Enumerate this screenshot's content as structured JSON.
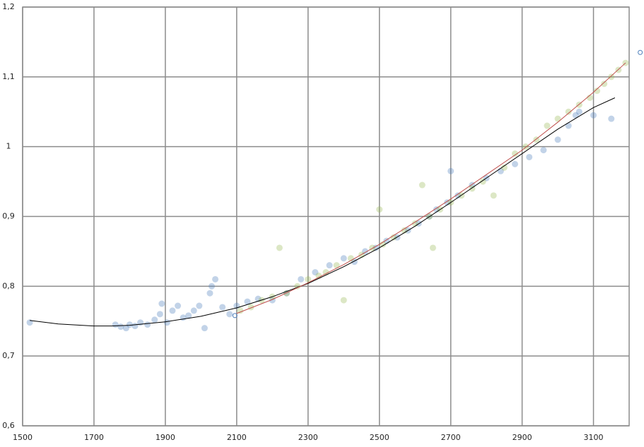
{
  "chart_data": {
    "type": "scatter",
    "xlim": [
      1500,
      3200
    ],
    "ylim": [
      0.6,
      1.2
    ],
    "xticks": [
      1500,
      1700,
      1900,
      2100,
      2300,
      2500,
      2700,
      2900,
      3100
    ],
    "yticks": [
      {
        "value": 0.6,
        "label": "0,6"
      },
      {
        "value": 0.7,
        "label": "0,7"
      },
      {
        "value": 0.8,
        "label": "0,8"
      },
      {
        "value": 0.9,
        "label": "0,9"
      },
      1,
      {
        "value": 1.1,
        "label": "1,1"
      },
      {
        "value": 1.2,
        "label": "1,2"
      }
    ],
    "grid": true,
    "series": [
      {
        "color": "#4f81bd",
        "x": [
          1520,
          1760,
          1775,
          1790,
          1800,
          1815,
          1830,
          1850,
          1870,
          1885,
          1890,
          1905,
          1920,
          1935,
          1950,
          1965,
          1980,
          1995,
          2010,
          2025,
          2030,
          2040,
          2060,
          2080,
          2100,
          2130,
          2160,
          2200,
          2240,
          2280,
          2320,
          2360,
          2400,
          2430,
          2460,
          2490,
          2520,
          2550,
          2580,
          2610,
          2640,
          2660,
          2690,
          2700,
          2720,
          2760,
          2800,
          2840,
          2880,
          2920,
          2960,
          3000,
          3030,
          3050,
          3060,
          3100,
          3150
        ],
        "values": [
          0.748,
          0.745,
          0.742,
          0.74,
          0.745,
          0.743,
          0.748,
          0.745,
          0.752,
          0.76,
          0.775,
          0.748,
          0.765,
          0.772,
          0.755,
          0.758,
          0.765,
          0.772,
          0.74,
          0.79,
          0.8,
          0.81,
          0.77,
          0.76,
          0.772,
          0.778,
          0.782,
          0.78,
          0.79,
          0.81,
          0.82,
          0.83,
          0.84,
          0.835,
          0.85,
          0.855,
          0.865,
          0.87,
          0.88,
          0.89,
          0.9,
          0.91,
          0.92,
          0.965,
          0.93,
          0.945,
          0.955,
          0.965,
          0.975,
          0.985,
          0.995,
          1.01,
          1.03,
          1.045,
          1.05,
          1.045,
          1.04
        ]
      },
      {
        "color": "#9bbb59",
        "x": [
          2110,
          2140,
          2170,
          2200,
          2220,
          2240,
          2270,
          2300,
          2330,
          2350,
          2380,
          2400,
          2420,
          2450,
          2480,
          2500,
          2510,
          2540,
          2570,
          2600,
          2620,
          2640,
          2650,
          2670,
          2700,
          2730,
          2760,
          2790,
          2820,
          2850,
          2880,
          2910,
          2940,
          2970,
          3000,
          3030,
          3060,
          3090,
          3110,
          3130,
          3150,
          3170,
          3190
        ],
        "values": [
          0.765,
          0.77,
          0.78,
          0.785,
          0.855,
          0.79,
          0.8,
          0.81,
          0.815,
          0.82,
          0.83,
          0.78,
          0.84,
          0.845,
          0.855,
          0.91,
          0.86,
          0.87,
          0.88,
          0.89,
          0.945,
          0.9,
          0.855,
          0.91,
          0.92,
          0.93,
          0.94,
          0.95,
          0.93,
          0.97,
          0.99,
          1.0,
          1.01,
          1.03,
          1.04,
          1.05,
          1.06,
          1.07,
          1.08,
          1.09,
          1.1,
          1.11,
          1.12
        ]
      }
    ],
    "trendlines": [
      {
        "color": "#000000",
        "x": [
          1520,
          1600,
          1700,
          1750,
          1800,
          1900,
          2000,
          2100,
          2200,
          2300,
          2400,
          2500,
          2600,
          2700,
          2800,
          2900,
          3000,
          3100,
          3160
        ],
        "values": [
          0.751,
          0.746,
          0.743,
          0.743,
          0.744,
          0.749,
          0.757,
          0.769,
          0.785,
          0.804,
          0.828,
          0.855,
          0.886,
          0.92,
          0.955,
          0.99,
          1.025,
          1.056,
          1.07
        ]
      },
      {
        "color": "#c0504d",
        "x": [
          2100,
          2200,
          2300,
          2400,
          2500,
          2600,
          2700,
          2800,
          2900,
          3000,
          3100,
          3190
        ],
        "values": [
          0.761,
          0.781,
          0.805,
          0.831,
          0.86,
          0.892,
          0.925,
          0.96,
          0.995,
          1.035,
          1.078,
          1.12
        ]
      }
    ],
    "open_points": {
      "color": "#4f81bd",
      "x": [
        2095,
        3231
      ],
      "values": [
        0.758,
        1.135
      ]
    }
  }
}
